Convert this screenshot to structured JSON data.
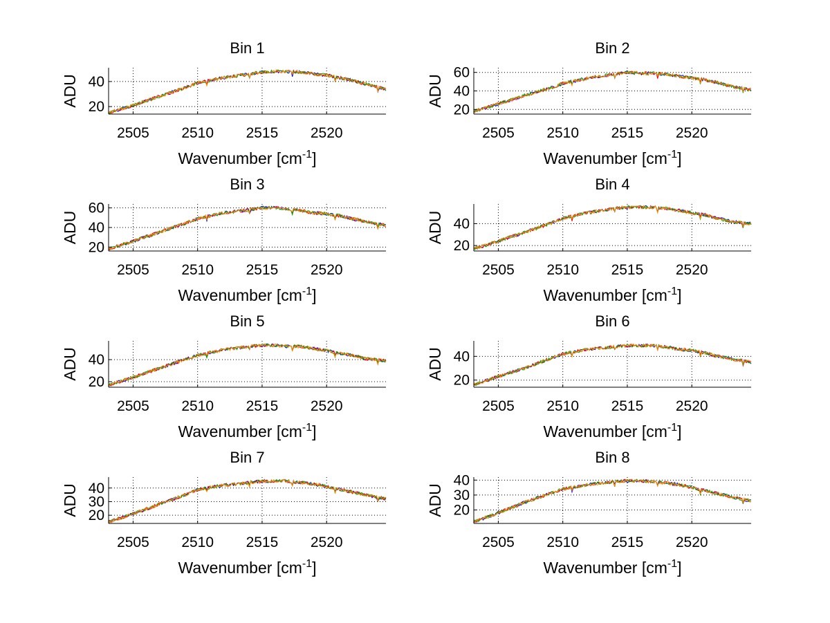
{
  "figure": {
    "background": "#ffffff"
  },
  "chart_data": [
    {
      "type": "line",
      "title": "Bin 1",
      "xlabel": "Wavenumber [cm",
      "xlabel_sup": "-1",
      "xlabel_end": "]",
      "ylabel": "ADU",
      "xlim": [
        2503.1,
        2524.6
      ],
      "ylim": [
        14,
        51
      ],
      "xticks": [
        2505,
        2510,
        2515,
        2520
      ],
      "yticks": [
        20,
        40
      ],
      "grid": true,
      "series": [
        {
          "color": "#0000ff",
          "x": [
            2503.1,
            2505,
            2507,
            2509,
            2510,
            2512,
            2514,
            2515,
            2516,
            2517,
            2518,
            2519,
            2520,
            2521,
            2522,
            2523,
            2524.6
          ],
          "y": [
            15,
            21,
            28,
            35,
            39,
            43,
            46,
            47.5,
            48,
            48,
            47.5,
            46,
            45,
            43,
            41,
            38,
            34
          ]
        },
        {
          "color": "#ff0000"
        },
        {
          "color": "#00aa00"
        },
        {
          "color": "#ff8800"
        }
      ]
    },
    {
      "type": "line",
      "title": "Bin 2",
      "xlabel": "Wavenumber [cm",
      "xlabel_sup": "-1",
      "xlabel_end": "]",
      "ylabel": "ADU",
      "xlim": [
        2503.1,
        2524.6
      ],
      "ylim": [
        15,
        65
      ],
      "xticks": [
        2505,
        2510,
        2515,
        2520
      ],
      "yticks": [
        20,
        40,
        60
      ],
      "grid": true,
      "series": [
        {
          "color": "#0000ff",
          "x": [
            2503.1,
            2505,
            2507,
            2509,
            2510,
            2512,
            2514,
            2515,
            2516,
            2517,
            2518,
            2519,
            2520,
            2521,
            2522,
            2523,
            2524.6
          ],
          "y": [
            18,
            26,
            35,
            43,
            48,
            54,
            58,
            60,
            59,
            59,
            58,
            56,
            54,
            52,
            49,
            45,
            41
          ]
        },
        {
          "color": "#ff0000"
        },
        {
          "color": "#00aa00"
        },
        {
          "color": "#ff8800"
        }
      ]
    },
    {
      "type": "line",
      "title": "Bin 3",
      "xlabel": "Wavenumber [cm",
      "xlabel_sup": "-1",
      "xlabel_end": "]",
      "ylabel": "ADU",
      "xlim": [
        2503.1,
        2524.6
      ],
      "ylim": [
        16,
        64
      ],
      "xticks": [
        2505,
        2510,
        2515,
        2520
      ],
      "yticks": [
        20,
        40,
        60
      ],
      "grid": true,
      "series": [
        {
          "color": "#0000ff",
          "x": [
            2503.1,
            2505,
            2507,
            2509,
            2510,
            2512,
            2514,
            2515,
            2516,
            2517,
            2518,
            2519,
            2520,
            2521,
            2522,
            2523,
            2524.6
          ],
          "y": [
            18,
            26,
            35,
            44,
            49,
            55,
            58,
            60,
            60,
            59,
            57,
            55,
            54,
            52,
            49,
            46,
            42
          ]
        },
        {
          "color": "#ff0000"
        },
        {
          "color": "#00aa00"
        },
        {
          "color": "#ff8800"
        }
      ]
    },
    {
      "type": "line",
      "title": "Bin 4",
      "xlabel": "Wavenumber [cm",
      "xlabel_sup": "-1",
      "xlabel_end": "]",
      "ylabel": "ADU",
      "xlim": [
        2503.1,
        2524.6
      ],
      "ylim": [
        15,
        58
      ],
      "xticks": [
        2505,
        2510,
        2515,
        2520
      ],
      "yticks": [
        20,
        40
      ],
      "grid": true,
      "series": [
        {
          "color": "#0000ff",
          "x": [
            2503.1,
            2505,
            2507,
            2509,
            2510,
            2512,
            2514,
            2515,
            2516,
            2517,
            2518,
            2519,
            2520,
            2521,
            2522,
            2523,
            2524.6
          ],
          "y": [
            17,
            24,
            32,
            40,
            45,
            50,
            54,
            55,
            55,
            55,
            54,
            52,
            50,
            48,
            45,
            42,
            40
          ]
        },
        {
          "color": "#ff0000"
        },
        {
          "color": "#00aa00"
        },
        {
          "color": "#ff8800"
        }
      ]
    },
    {
      "type": "line",
      "title": "Bin 5",
      "xlabel": "Wavenumber [cm",
      "xlabel_sup": "-1",
      "xlabel_end": "]",
      "ylabel": "ADU",
      "xlim": [
        2503.1,
        2524.6
      ],
      "ylim": [
        15,
        57
      ],
      "xticks": [
        2505,
        2510,
        2515,
        2520
      ],
      "yticks": [
        20,
        40
      ],
      "grid": true,
      "series": [
        {
          "color": "#0000ff",
          "x": [
            2503.1,
            2505,
            2507,
            2509,
            2510,
            2512,
            2514,
            2515,
            2516,
            2517,
            2518,
            2519,
            2520,
            2521,
            2522,
            2523,
            2524.6
          ],
          "y": [
            17,
            24,
            32,
            40,
            44,
            49,
            52,
            53,
            53,
            52,
            52,
            50,
            48,
            46,
            44,
            41,
            39
          ]
        },
        {
          "color": "#ff0000"
        },
        {
          "color": "#00aa00"
        },
        {
          "color": "#ff8800"
        }
      ]
    },
    {
      "type": "line",
      "title": "Bin 6",
      "xlabel": "Wavenumber [cm",
      "xlabel_sup": "-1",
      "xlabel_end": "]",
      "ylabel": "ADU",
      "xlim": [
        2503.1,
        2524.6
      ],
      "ylim": [
        14,
        53
      ],
      "xticks": [
        2505,
        2510,
        2515,
        2520
      ],
      "yticks": [
        20,
        40
      ],
      "grid": true,
      "series": [
        {
          "color": "#0000ff",
          "x": [
            2503.1,
            2505,
            2507,
            2509,
            2510,
            2512,
            2514,
            2515,
            2516,
            2517,
            2518,
            2519,
            2520,
            2521,
            2522,
            2523,
            2524.6
          ],
          "y": [
            16,
            23,
            30,
            38,
            42,
            46,
            48,
            49,
            49,
            49,
            48,
            46,
            45,
            43,
            40,
            38,
            35
          ]
        },
        {
          "color": "#ff0000"
        },
        {
          "color": "#00aa00"
        },
        {
          "color": "#ff8800"
        }
      ]
    },
    {
      "type": "line",
      "title": "Bin 7",
      "xlabel": "Wavenumber [cm",
      "xlabel_sup": "-1",
      "xlabel_end": "]",
      "ylabel": "ADU",
      "xlim": [
        2503.1,
        2524.6
      ],
      "ylim": [
        14,
        48
      ],
      "xticks": [
        2505,
        2510,
        2515,
        2520
      ],
      "yticks": [
        20,
        30,
        40
      ],
      "grid": true,
      "series": [
        {
          "color": "#0000ff",
          "x": [
            2503.1,
            2505,
            2507,
            2509,
            2510,
            2512,
            2514,
            2515,
            2516,
            2517,
            2518,
            2519,
            2520,
            2521,
            2522,
            2523,
            2524.6
          ],
          "y": [
            15,
            21,
            28,
            35,
            39,
            42,
            44,
            45,
            45,
            45,
            44,
            43,
            41,
            39,
            37,
            35,
            32
          ]
        },
        {
          "color": "#ff0000"
        },
        {
          "color": "#00aa00"
        },
        {
          "color": "#ff8800"
        }
      ]
    },
    {
      "type": "line",
      "title": "Bin 8",
      "xlabel": "Wavenumber [cm",
      "xlabel_sup": "-1",
      "xlabel_end": "]",
      "ylabel": "ADU",
      "xlim": [
        2503.1,
        2524.6
      ],
      "ylim": [
        11,
        42
      ],
      "xticks": [
        2505,
        2510,
        2515,
        2520
      ],
      "yticks": [
        20,
        30,
        40
      ],
      "grid": true,
      "series": [
        {
          "color": "#0000ff",
          "x": [
            2503.1,
            2505,
            2507,
            2509,
            2510,
            2512,
            2514,
            2515,
            2516,
            2517,
            2518,
            2519,
            2520,
            2521,
            2522,
            2523,
            2524.6
          ],
          "y": [
            12,
            18,
            25,
            31,
            34,
            37,
            39,
            39.5,
            39.5,
            39,
            38,
            37,
            35,
            33,
            31,
            29,
            26
          ]
        },
        {
          "color": "#ff0000"
        },
        {
          "color": "#00aa00"
        },
        {
          "color": "#ff8800"
        }
      ]
    }
  ]
}
